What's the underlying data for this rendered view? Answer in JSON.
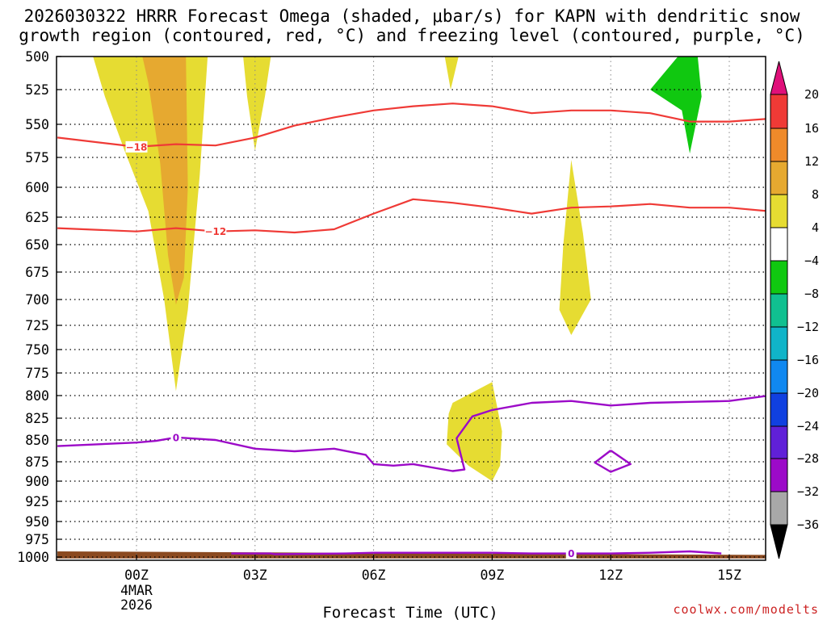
{
  "chart_data": {
    "type": "time-height",
    "title_line1": "2026030322 HRRR Forecast Omega (shaded, μbar/s) for KAPN with dendritic snow",
    "title_line2": "growth region (contoured, red, °C) and freezing level (contoured, purple, °C)",
    "xlabel": "Forecast Time (UTC)",
    "credit": "coolwx.com/modelts",
    "x_ticks": [
      {
        "hour": 0,
        "label": "00Z"
      },
      {
        "hour": 3,
        "label": "03Z"
      },
      {
        "hour": 6,
        "label": "06Z"
      },
      {
        "hour": 9,
        "label": "09Z"
      },
      {
        "hour": 12,
        "label": "12Z"
      },
      {
        "hour": 15,
        "label": "15Z"
      }
    ],
    "date_line1": "4MAR",
    "date_line2": "2026",
    "xlim": [
      -2,
      16
    ],
    "ylim": [
      500,
      1000
    ],
    "y_ticks": [
      "500",
      "525",
      "550",
      "575",
      "600",
      "625",
      "650",
      "675",
      "700",
      "725",
      "750",
      "775",
      "800",
      "825",
      "850",
      "875",
      "900",
      "925",
      "950",
      "975",
      "1000"
    ],
    "colorbar": {
      "ticks": [
        "20",
        "16",
        "12",
        "8",
        "4",
        "-4",
        "-8",
        "-12",
        "-16",
        "-20",
        "-24",
        "-28",
        "-32",
        "-36"
      ],
      "colors": {
        "above_20": "#e0107a",
        "b16_20": "#ef3a36",
        "b12_16": "#ef8a2a",
        "b8_12": "#e6a930",
        "b4_8": "#e6dc32",
        "bm4_4": "#ffffff",
        "bm8_m4": "#10c810",
        "bm12_m8": "#10c090",
        "bm16_m12": "#10b4c8",
        "bm20_m16": "#1088f0",
        "bm24_m20": "#1040e0",
        "bm28_m24": "#6020d8",
        "bm32_m28": "#9c0ac8",
        "bm36_m32": "#a8a8a8",
        "below_m36": "#000000"
      }
    },
    "shaded_regions": [
      {
        "color": "#e6dc32",
        "points": [
          [
            -1.1,
            500
          ],
          [
            1.8,
            500
          ],
          [
            1.6,
            590
          ],
          [
            1.3,
            710
          ],
          [
            1.0,
            795
          ],
          [
            0.7,
            700
          ],
          [
            0.3,
            620
          ],
          [
            -0.3,
            570
          ],
          [
            -0.8,
            530
          ],
          [
            -1.1,
            500
          ]
        ]
      },
      {
        "color": "#e6a930",
        "points": [
          [
            0.15,
            500
          ],
          [
            1.25,
            500
          ],
          [
            1.3,
            600
          ],
          [
            1.2,
            680
          ],
          [
            1.0,
            705
          ],
          [
            0.8,
            660
          ],
          [
            0.6,
            580
          ],
          [
            0.3,
            520
          ],
          [
            0.15,
            500
          ]
        ]
      },
      {
        "color": "#e6dc32",
        "points": [
          [
            2.7,
            500
          ],
          [
            3.4,
            500
          ],
          [
            3.25,
            530
          ],
          [
            3.0,
            570
          ],
          [
            2.8,
            530
          ],
          [
            2.7,
            500
          ]
        ]
      },
      {
        "color": "#e6dc32",
        "points": [
          [
            7.8,
            500
          ],
          [
            8.15,
            500
          ],
          [
            7.95,
            525
          ],
          [
            7.8,
            500
          ]
        ]
      },
      {
        "color": "#10c810",
        "points": [
          [
            13.7,
            500
          ],
          [
            14.2,
            500
          ],
          [
            14.3,
            530
          ],
          [
            14.0,
            572
          ],
          [
            13.8,
            540
          ],
          [
            13.0,
            525
          ],
          [
            13.7,
            500
          ]
        ]
      },
      {
        "color": "#e6dc32",
        "points": [
          [
            11.0,
            577
          ],
          [
            11.3,
            640
          ],
          [
            11.5,
            700
          ],
          [
            11.0,
            735
          ],
          [
            10.7,
            710
          ],
          [
            10.8,
            650
          ],
          [
            11.0,
            577
          ]
        ]
      },
      {
        "color": "#e6dc32",
        "points": [
          [
            8.0,
            808
          ],
          [
            9.0,
            785
          ],
          [
            9.25,
            840
          ],
          [
            9.2,
            880
          ],
          [
            9.0,
            900
          ],
          [
            8.4,
            880
          ],
          [
            7.85,
            855
          ],
          [
            7.9,
            820
          ],
          [
            8.0,
            808
          ]
        ]
      },
      {
        "color": "#8b4a20",
        "points": [
          [
            -2,
            992
          ],
          [
            16,
            997
          ],
          [
            16,
            1002
          ],
          [
            -2,
            1002
          ]
        ]
      }
    ],
    "contours": [
      {
        "level": "-18",
        "color": "#ef3a36",
        "label_at": 1,
        "points": [
          [
            -2,
            560
          ],
          [
            0,
            567
          ],
          [
            1,
            565
          ],
          [
            2,
            566
          ],
          [
            3,
            560
          ],
          [
            4,
            551
          ],
          [
            5,
            545
          ],
          [
            6,
            540
          ],
          [
            7,
            537
          ],
          [
            8,
            535
          ],
          [
            9,
            537
          ],
          [
            10,
            542
          ],
          [
            11,
            540
          ],
          [
            12,
            540
          ],
          [
            13,
            542
          ],
          [
            14,
            548
          ],
          [
            15,
            548
          ],
          [
            16,
            546
          ]
        ]
      },
      {
        "level": "-12",
        "color": "#ef3a36",
        "label_at": 3,
        "points": [
          [
            -2,
            635
          ],
          [
            0,
            638
          ],
          [
            1,
            635
          ],
          [
            2,
            638
          ],
          [
            3,
            637
          ],
          [
            4,
            639
          ],
          [
            5,
            636
          ],
          [
            6,
            622
          ],
          [
            7,
            610
          ],
          [
            8,
            613
          ],
          [
            9,
            617
          ],
          [
            10,
            622
          ],
          [
            11,
            617
          ],
          [
            12,
            616
          ],
          [
            13,
            614
          ],
          [
            14,
            617
          ],
          [
            15,
            617
          ],
          [
            16,
            620
          ]
        ]
      },
      {
        "level": "0",
        "color": "#9c0ac8",
        "label_at": 3,
        "points": [
          [
            -2,
            857
          ],
          [
            0,
            853
          ],
          [
            0.5,
            851
          ],
          [
            1,
            847
          ],
          [
            2,
            850
          ],
          [
            3,
            860
          ],
          [
            4,
            863
          ],
          [
            5,
            860
          ],
          [
            5.8,
            867
          ],
          [
            6,
            878
          ],
          [
            6.5,
            880
          ],
          [
            7,
            878
          ],
          [
            8,
            887
          ],
          [
            8.3,
            885
          ],
          [
            8.1,
            848
          ],
          [
            8.5,
            823
          ],
          [
            9,
            816
          ],
          [
            10,
            808
          ],
          [
            11,
            806
          ],
          [
            12,
            811
          ],
          [
            13,
            808
          ],
          [
            14,
            807
          ],
          [
            15,
            806
          ],
          [
            16,
            800
          ]
        ]
      },
      {
        "level": "0",
        "color": "#9c0ac8",
        "label_at": -1,
        "points": [
          [
            12,
            862
          ],
          [
            12.5,
            878
          ],
          [
            12,
            888
          ],
          [
            11.6,
            876
          ],
          [
            12,
            862
          ]
        ]
      },
      {
        "level": "0",
        "color": "#9c0ac8",
        "label_at": 9,
        "points": [
          [
            2.4,
            995
          ],
          [
            3.4,
            995
          ],
          [
            3.5,
            996
          ],
          [
            5.3,
            995
          ],
          [
            6,
            994
          ],
          [
            7,
            994
          ],
          [
            8,
            994
          ],
          [
            9,
            994
          ],
          [
            10,
            995
          ],
          [
            11,
            995
          ],
          [
            12,
            995
          ],
          [
            13,
            994
          ],
          [
            14,
            992
          ],
          [
            14.8,
            995
          ]
        ]
      }
    ]
  }
}
